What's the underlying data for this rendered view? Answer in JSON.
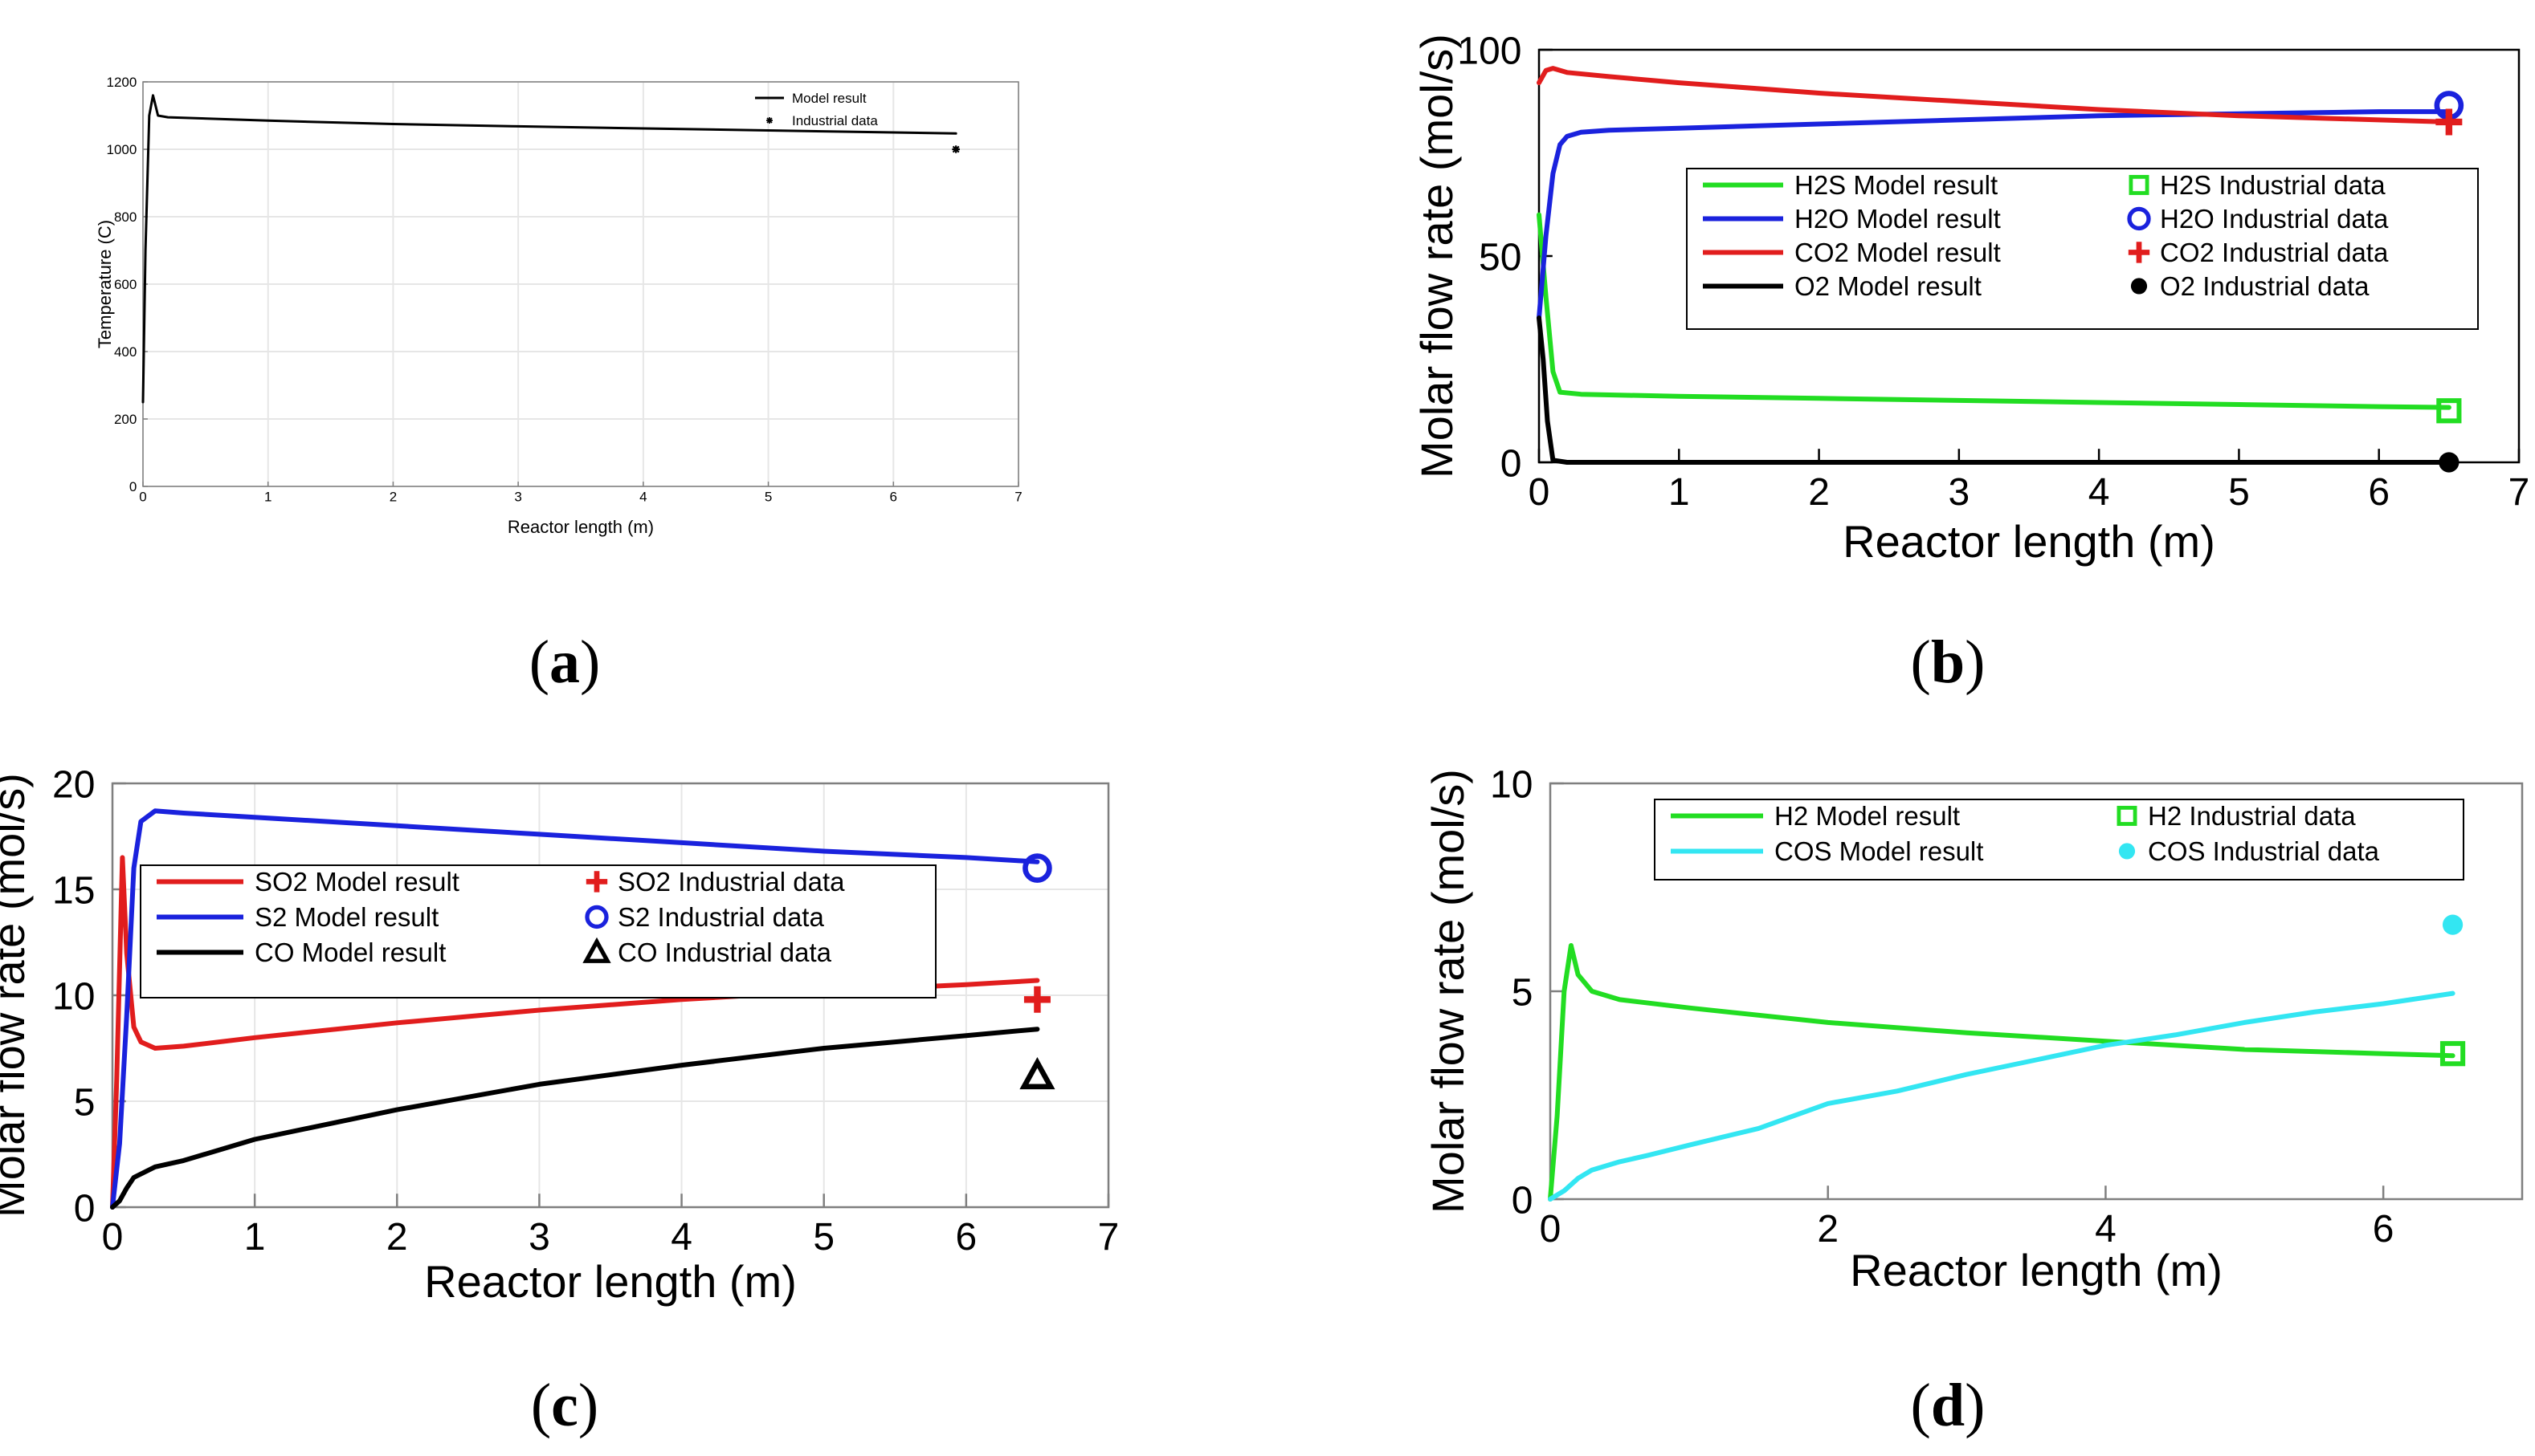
{
  "colors": {
    "black": "#000000",
    "green": "#22dd22",
    "blue": "#1a22dd",
    "red": "#e11d1d",
    "cyan": "#33e6f2",
    "axis_small": "#7f7f7f",
    "grid": "#e6e6e6"
  },
  "captions": [
    "a",
    "b",
    "c",
    "d"
  ],
  "chart_data": [
    {
      "id": "a",
      "type": "line",
      "title": "",
      "xlabel": "Reactor length (m)",
      "ylabel": "Temperature (C)",
      "xlim": [
        0,
        7
      ],
      "ylim": [
        0,
        1200
      ],
      "xticks": [
        "0",
        "1",
        "2",
        "3",
        "4",
        "5",
        "6",
        "7"
      ],
      "yticks": [
        "0",
        "200",
        "400",
        "600",
        "800",
        "1000",
        "1200"
      ],
      "grid": true,
      "legend_position": "top-right",
      "legend": [
        {
          "label": "Model result",
          "marker": "line",
          "color": "#000000"
        },
        {
          "label": "Industrial data",
          "marker": "star",
          "color": "#000000"
        }
      ],
      "series": [
        {
          "color": "#000000",
          "kind": "line",
          "x": [
            0,
            0.02,
            0.05,
            0.08,
            0.12,
            0.2,
            1,
            2,
            3,
            4,
            5,
            6,
            6.5
          ],
          "y": [
            250,
            700,
            1100,
            1160,
            1100,
            1095,
            1085,
            1075,
            1068,
            1062,
            1056,
            1050,
            1047
          ]
        },
        {
          "color": "#000000",
          "kind": "marker",
          "marker": "star",
          "x": [
            6.5
          ],
          "y": [
            1000
          ]
        }
      ]
    },
    {
      "id": "b",
      "type": "line",
      "title": "",
      "xlabel": "Reactor length (m)",
      "ylabel": "Molar flow rate (mol/s)",
      "xlim": [
        0,
        7
      ],
      "ylim": [
        0,
        100
      ],
      "xticks": [
        "0",
        "1",
        "2",
        "3",
        "4",
        "5",
        "6",
        "7"
      ],
      "yticks": [
        "0",
        "50",
        "100"
      ],
      "grid": false,
      "legend_position": "center-right",
      "legend": [
        {
          "label": "H2S Model result",
          "marker": "line",
          "color": "#22dd22"
        },
        {
          "label": "H2O Model result",
          "marker": "line",
          "color": "#1a22dd"
        },
        {
          "label": "CO2 Model result",
          "marker": "line",
          "color": "#e11d1d"
        },
        {
          "label": "O2 Model result",
          "marker": "line",
          "color": "#000000"
        },
        {
          "label": "H2S Industrial data",
          "marker": "square",
          "color": "#22dd22"
        },
        {
          "label": "H2O Industrial data",
          "marker": "circle",
          "color": "#1a22dd"
        },
        {
          "label": "CO2 Industrial data",
          "marker": "plus",
          "color": "#e11d1d"
        },
        {
          "label": "O2 Industrial data",
          "marker": "dot",
          "color": "#000000"
        }
      ],
      "series": [
        {
          "color": "#22dd22",
          "kind": "line",
          "x": [
            0,
            0.05,
            0.1,
            0.15,
            0.3,
            1,
            2,
            3,
            4,
            5,
            6,
            6.5
          ],
          "y": [
            60,
            40,
            22,
            17,
            16.5,
            16,
            15.5,
            15,
            14.5,
            14,
            13.5,
            13.3
          ]
        },
        {
          "color": "#1a22dd",
          "kind": "line",
          "x": [
            0,
            0.05,
            0.1,
            0.15,
            0.2,
            0.3,
            0.5,
            1,
            2,
            3,
            4,
            5,
            6,
            6.5
          ],
          "y": [
            35,
            55,
            70,
            77,
            79,
            80,
            80.5,
            81,
            82,
            83,
            84,
            84.5,
            85,
            85
          ]
        },
        {
          "color": "#e11d1d",
          "kind": "line",
          "x": [
            0,
            0.05,
            0.1,
            0.2,
            0.5,
            1,
            2,
            3,
            4,
            5,
            6,
            6.5
          ],
          "y": [
            92,
            95,
            95.5,
            94.5,
            93.5,
            92,
            89.5,
            87.5,
            85.5,
            84,
            83,
            82.5
          ]
        },
        {
          "color": "#000000",
          "kind": "line",
          "x": [
            0,
            0.03,
            0.06,
            0.1,
            0.2,
            1,
            3,
            5,
            6.5
          ],
          "y": [
            35,
            25,
            10,
            0.5,
            0,
            0,
            0,
            0,
            0
          ]
        },
        {
          "color": "#22dd22",
          "kind": "marker",
          "marker": "square",
          "x": [
            6.5
          ],
          "y": [
            12.5
          ]
        },
        {
          "color": "#1a22dd",
          "kind": "marker",
          "marker": "circle",
          "x": [
            6.5
          ],
          "y": [
            86.5
          ]
        },
        {
          "color": "#e11d1d",
          "kind": "marker",
          "marker": "plus",
          "x": [
            6.5
          ],
          "y": [
            82.5
          ]
        },
        {
          "color": "#000000",
          "kind": "marker",
          "marker": "dot",
          "x": [
            6.5
          ],
          "y": [
            0
          ]
        }
      ]
    },
    {
      "id": "c",
      "type": "line",
      "title": "",
      "xlabel": "Reactor length (m)",
      "ylabel": "Molar flow rate (mol/s)",
      "xlim": [
        0,
        7
      ],
      "ylim": [
        0,
        20
      ],
      "xticks": [
        "0",
        "1",
        "2",
        "3",
        "4",
        "5",
        "6",
        "7"
      ],
      "yticks": [
        "0",
        "5",
        "10",
        "15",
        "20"
      ],
      "grid": true,
      "legend_position": "center-left",
      "legend": [
        {
          "label": "SO2 Model result",
          "marker": "line",
          "color": "#e11d1d"
        },
        {
          "label": "S2 Model result",
          "marker": "line",
          "color": "#1a22dd"
        },
        {
          "label": "CO Model result",
          "marker": "line",
          "color": "#000000"
        },
        {
          "label": "SO2 Industrial data",
          "marker": "plus",
          "color": "#e11d1d"
        },
        {
          "label": "S2 Industrial data",
          "marker": "circle",
          "color": "#1a22dd"
        },
        {
          "label": "CO Industrial data",
          "marker": "triangle",
          "color": "#000000"
        }
      ],
      "series": [
        {
          "color": "#e11d1d",
          "kind": "line",
          "x": [
            0,
            0.03,
            0.07,
            0.1,
            0.15,
            0.2,
            0.3,
            0.5,
            1,
            2,
            3,
            4,
            5,
            6,
            6.5
          ],
          "y": [
            0,
            6,
            16.5,
            12,
            8.5,
            7.8,
            7.5,
            7.6,
            8,
            8.7,
            9.3,
            9.8,
            10.2,
            10.5,
            10.7
          ]
        },
        {
          "color": "#1a22dd",
          "kind": "line",
          "x": [
            0,
            0.05,
            0.1,
            0.15,
            0.2,
            0.3,
            0.5,
            1,
            2,
            3,
            4,
            5,
            6,
            6.5
          ],
          "y": [
            0,
            3,
            9,
            16,
            18.2,
            18.7,
            18.6,
            18.4,
            18,
            17.6,
            17.2,
            16.8,
            16.5,
            16.3
          ]
        },
        {
          "color": "#000000",
          "kind": "line",
          "x": [
            0,
            0.05,
            0.1,
            0.15,
            0.3,
            0.5,
            1,
            2,
            3,
            4,
            5,
            6,
            6.5
          ],
          "y": [
            0,
            0.3,
            0.9,
            1.4,
            1.9,
            2.2,
            3.2,
            4.6,
            5.8,
            6.7,
            7.5,
            8.1,
            8.4
          ]
        },
        {
          "color": "#e11d1d",
          "kind": "marker",
          "marker": "plus",
          "x": [
            6.5
          ],
          "y": [
            9.8
          ]
        },
        {
          "color": "#1a22dd",
          "kind": "marker",
          "marker": "circle",
          "x": [
            6.5
          ],
          "y": [
            16
          ]
        },
        {
          "color": "#000000",
          "kind": "marker",
          "marker": "triangle",
          "x": [
            6.5
          ],
          "y": [
            6.2
          ]
        }
      ]
    },
    {
      "id": "d",
      "type": "line",
      "title": "",
      "xlabel": "Reactor length (m)",
      "ylabel": "Molar flow rate (mol/s)",
      "xlim": [
        0,
        7
      ],
      "ylim": [
        0,
        10
      ],
      "xticks": [
        "0",
        "2",
        "4",
        "6"
      ],
      "yticks": [
        "0",
        "5",
        "10"
      ],
      "grid": false,
      "legend_position": "top-right",
      "legend": [
        {
          "label": "H2 Model result",
          "marker": "line",
          "color": "#22dd22"
        },
        {
          "label": "COS Model result",
          "marker": "line",
          "color": "#33e6f2"
        },
        {
          "label": "H2 Industrial data",
          "marker": "square",
          "color": "#22dd22"
        },
        {
          "label": "COS Industrial data",
          "marker": "dot",
          "color": "#33e6f2"
        }
      ],
      "series": [
        {
          "color": "#22dd22",
          "kind": "line",
          "x": [
            0,
            0.05,
            0.1,
            0.15,
            0.2,
            0.3,
            0.5,
            1,
            2,
            3,
            4,
            5,
            6,
            6.5
          ],
          "y": [
            0,
            2,
            5,
            6.1,
            5.4,
            5,
            4.8,
            4.6,
            4.25,
            4,
            3.8,
            3.6,
            3.5,
            3.45
          ]
        },
        {
          "color": "#33e6f2",
          "kind": "line",
          "x": [
            0,
            0.1,
            0.2,
            0.3,
            0.5,
            0.7,
            1,
            1.5,
            2,
            2.5,
            3,
            3.5,
            4,
            4.5,
            5,
            5.5,
            6,
            6.5
          ],
          "y": [
            0,
            0.2,
            0.5,
            0.7,
            0.9,
            1.05,
            1.3,
            1.7,
            2.3,
            2.6,
            3,
            3.35,
            3.7,
            3.95,
            4.25,
            4.5,
            4.7,
            4.95
          ]
        },
        {
          "color": "#22dd22",
          "kind": "marker",
          "marker": "square",
          "x": [
            6.5
          ],
          "y": [
            3.5
          ]
        },
        {
          "color": "#33e6f2",
          "kind": "marker",
          "marker": "dot",
          "x": [
            6.5
          ],
          "y": [
            6.6
          ]
        }
      ]
    }
  ]
}
